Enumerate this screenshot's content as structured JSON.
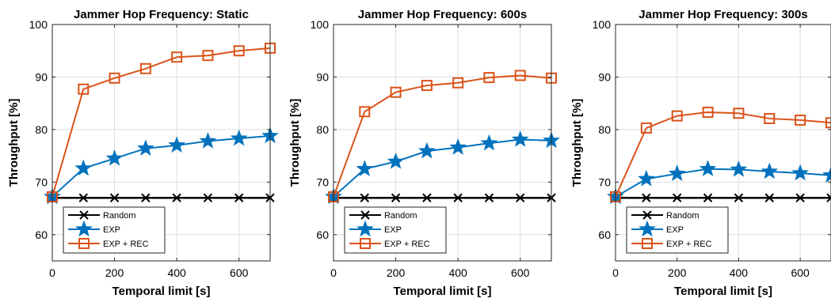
{
  "colors": {
    "random": "#000000",
    "exp": "#0072BD",
    "exp_rec": "#D95319",
    "grid": "#dedede",
    "axis": "#262626"
  },
  "chart_data": [
    {
      "type": "line",
      "title": "Jammer Hop Frequency: Static",
      "xlabel": "Temporal limit [s]",
      "ylabel": "Throughput [%]",
      "xlim": [
        0,
        700
      ],
      "ylim": [
        55,
        100
      ],
      "xticks": [
        0,
        200,
        400,
        600
      ],
      "yticks": [
        60,
        70,
        80,
        90,
        100
      ],
      "grid": true,
      "legend_position": "bottom-left",
      "x": [
        0,
        100,
        200,
        300,
        400,
        500,
        600,
        700
      ],
      "series": [
        {
          "name": "Random",
          "marker": "x",
          "color": "#000000",
          "values": [
            67,
            67,
            67,
            67,
            67,
            67,
            67,
            67
          ]
        },
        {
          "name": "EXP",
          "marker": "star",
          "color": "#0072BD",
          "values": [
            67.2,
            72.6,
            74.5,
            76.4,
            77.0,
            77.8,
            78.3,
            78.8
          ]
        },
        {
          "name": "EXP + REC",
          "marker": "square",
          "color": "#D95319",
          "values": [
            67.2,
            87.7,
            89.8,
            91.6,
            93.8,
            94.1,
            95.0,
            95.5
          ]
        }
      ]
    },
    {
      "type": "line",
      "title": "Jammer Hop Frequency: 600s",
      "xlabel": "Temporal limit [s]",
      "ylabel": "Throughput [%]",
      "xlim": [
        0,
        700
      ],
      "ylim": [
        55,
        100
      ],
      "xticks": [
        0,
        200,
        400,
        600
      ],
      "yticks": [
        60,
        70,
        80,
        90,
        100
      ],
      "grid": true,
      "legend_position": "bottom-left",
      "x": [
        0,
        100,
        200,
        300,
        400,
        500,
        600,
        700
      ],
      "series": [
        {
          "name": "Random",
          "marker": "x",
          "color": "#000000",
          "values": [
            67,
            67,
            67,
            67,
            67,
            67,
            67,
            67
          ]
        },
        {
          "name": "EXP",
          "marker": "star",
          "color": "#0072BD",
          "values": [
            67.2,
            72.5,
            73.9,
            75.9,
            76.6,
            77.4,
            78.1,
            77.9
          ]
        },
        {
          "name": "EXP + REC",
          "marker": "square",
          "color": "#D95319",
          "values": [
            67.2,
            83.4,
            87.1,
            88.4,
            88.9,
            89.9,
            90.3,
            89.8
          ]
        }
      ]
    },
    {
      "type": "line",
      "title": "Jammer Hop Frequency: 300s",
      "xlabel": "Temporal limit [s]",
      "ylabel": "Throughput [%]",
      "xlim": [
        0,
        700
      ],
      "ylim": [
        55,
        100
      ],
      "xticks": [
        0,
        200,
        400,
        600
      ],
      "yticks": [
        60,
        70,
        80,
        90,
        100
      ],
      "grid": true,
      "legend_position": "bottom-left",
      "x": [
        0,
        100,
        200,
        300,
        400,
        500,
        600,
        700
      ],
      "series": [
        {
          "name": "Random",
          "marker": "x",
          "color": "#000000",
          "values": [
            67,
            67,
            67,
            67,
            67,
            67,
            67,
            67
          ]
        },
        {
          "name": "EXP",
          "marker": "star",
          "color": "#0072BD",
          "values": [
            67.2,
            70.6,
            71.6,
            72.5,
            72.4,
            72.0,
            71.7,
            71.3
          ]
        },
        {
          "name": "EXP + REC",
          "marker": "square",
          "color": "#D95319",
          "values": [
            67.2,
            80.3,
            82.6,
            83.3,
            83.1,
            82.1,
            81.8,
            81.3
          ]
        }
      ]
    }
  ]
}
